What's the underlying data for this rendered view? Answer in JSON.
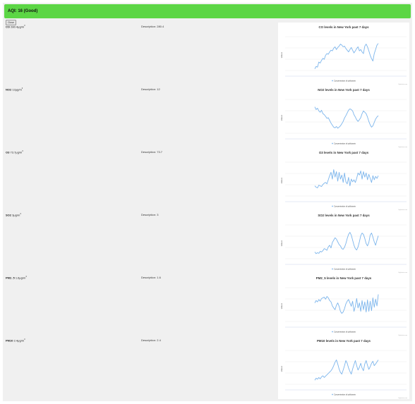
{
  "header": {
    "title": "AQI: 16 (Good)",
    "color": "#5cd645",
    "close_label": "Close"
  },
  "rows": [
    {
      "name": "CO",
      "value": "280.4",
      "unit": "μg/m",
      "unit_exp": "3",
      "description": "Description: 280.4",
      "chart_title": "CO levels in New York past 7 days"
    },
    {
      "name": "NO2",
      "value": "12",
      "unit": "μg/m",
      "unit_exp": "3",
      "description": "Description: 12",
      "chart_title": "NO2 levels in New York past 7 days"
    },
    {
      "name": "O3",
      "value": "73.7",
      "unit": "μg/m",
      "unit_exp": "3",
      "description": "Description: 73.7",
      "chart_title": "O3 levels in New York past 7 days"
    },
    {
      "name": "SO2",
      "value": "3",
      "unit": "μg/m",
      "unit_exp": "3",
      "description": "Description: 3",
      "chart_title": "SO2 levels in New York past 7 days"
    },
    {
      "name": "PM2_5",
      "value": "1.6",
      "unit": "μg/m",
      "unit_exp": "3",
      "description": "Description: 1.6",
      "chart_title": "PM2_5 levels in New York past 7 days"
    },
    {
      "name": "PM10",
      "value": "2.4",
      "unit": "μg/m",
      "unit_exp": "3",
      "description": "Description: 2.4",
      "chart_title": "PM10 levels in New York past 7 days"
    }
  ],
  "chart_common": {
    "ylabel": "Values",
    "legend": "Concentration of pollutants",
    "credits": "Highcharts.com",
    "line_color": "#7cb5ec",
    "axis_color": "#ccd6eb"
  },
  "chart_data": [
    {
      "type": "line",
      "title": "CO levels in New York past 7 days",
      "ylabel": "Values",
      "series": [
        {
          "name": "Concentration of pollutants",
          "values": [
            0.05,
            0.12,
            0.1,
            0.25,
            0.22,
            0.3,
            0.36,
            0.33,
            0.45,
            0.5,
            0.48,
            0.55,
            0.6,
            0.58,
            0.66,
            0.7,
            0.62,
            0.68,
            0.72,
            0.78,
            0.75,
            0.7,
            0.72,
            0.65,
            0.6,
            0.55,
            0.62,
            0.68,
            0.6,
            0.52,
            0.58,
            0.65,
            0.7,
            0.58,
            0.62,
            0.55,
            0.5,
            0.72,
            0.78,
            0.7,
            0.58,
            0.45,
            0.35,
            0.28,
            0.5,
            0.62,
            0.75,
            0.8
          ]
        }
      ]
    },
    {
      "type": "line",
      "title": "NO2 levels in New York past 7 days",
      "ylabel": "Values",
      "series": [
        {
          "name": "Concentration of pollutants",
          "values": [
            0.78,
            0.7,
            0.74,
            0.66,
            0.62,
            0.68,
            0.58,
            0.55,
            0.5,
            0.44,
            0.46,
            0.38,
            0.3,
            0.24,
            0.18,
            0.16,
            0.2,
            0.15,
            0.18,
            0.22,
            0.28,
            0.35,
            0.45,
            0.52,
            0.6,
            0.68,
            0.72,
            0.7,
            0.66,
            0.55,
            0.48,
            0.4,
            0.35,
            0.4,
            0.46,
            0.58,
            0.66,
            0.62,
            0.58,
            0.48,
            0.35,
            0.25,
            0.18,
            0.22,
            0.32,
            0.42,
            0.48,
            0.52
          ]
        }
      ]
    },
    {
      "type": "line",
      "title": "O3 levels in New York past 7 days",
      "ylabel": "Values",
      "series": [
        {
          "name": "Concentration of pollutants",
          "values": [
            0.3,
            0.26,
            0.24,
            0.32,
            0.3,
            0.28,
            0.34,
            0.38,
            0.4,
            0.36,
            0.48,
            0.6,
            0.7,
            0.5,
            0.78,
            0.56,
            0.72,
            0.44,
            0.7,
            0.5,
            0.62,
            0.4,
            0.68,
            0.42,
            0.36,
            0.55,
            0.3,
            0.5,
            0.42,
            0.48,
            0.4,
            0.52,
            0.68,
            0.62,
            0.74,
            0.5,
            0.72,
            0.56,
            0.68,
            0.48,
            0.64,
            0.52,
            0.4,
            0.6,
            0.48,
            0.58,
            0.52,
            0.6
          ]
        }
      ]
    },
    {
      "type": "line",
      "title": "SO2 levels in New York past 7 days",
      "ylabel": "Values",
      "series": [
        {
          "name": "Concentration of pollutants",
          "values": [
            0.2,
            0.15,
            0.18,
            0.16,
            0.22,
            0.2,
            0.24,
            0.3,
            0.28,
            0.25,
            0.35,
            0.4,
            0.32,
            0.48,
            0.55,
            0.62,
            0.58,
            0.5,
            0.42,
            0.38,
            0.3,
            0.28,
            0.34,
            0.45,
            0.6,
            0.72,
            0.78,
            0.7,
            0.55,
            0.4,
            0.3,
            0.26,
            0.35,
            0.5,
            0.68,
            0.76,
            0.72,
            0.6,
            0.45,
            0.38,
            0.48,
            0.7,
            0.76,
            0.64,
            0.5,
            0.4,
            0.55,
            0.68
          ]
        }
      ]
    },
    {
      "type": "line",
      "title": "PM2_5 levels in New York past 7 days",
      "ylabel": "Values",
      "series": [
        {
          "name": "Concentration of pollutants",
          "values": [
            0.55,
            0.62,
            0.58,
            0.65,
            0.6,
            0.68,
            0.7,
            0.72,
            0.66,
            0.74,
            0.7,
            0.62,
            0.58,
            0.46,
            0.4,
            0.35,
            0.48,
            0.55,
            0.45,
            0.3,
            0.24,
            0.28,
            0.38,
            0.52,
            0.6,
            0.65,
            0.55,
            0.45,
            0.6,
            0.3,
            0.45,
            0.68,
            0.4,
            0.55,
            0.3,
            0.62,
            0.35,
            0.58,
            0.28,
            0.64,
            0.3,
            0.6,
            0.32,
            0.7,
            0.42,
            0.66,
            0.46,
            0.8
          ]
        }
      ]
    },
    {
      "type": "line",
      "title": "PM10 levels in New York past 7 days",
      "ylabel": "Values",
      "series": [
        {
          "name": "Concentration of pollutants",
          "values": [
            0.12,
            0.18,
            0.15,
            0.2,
            0.16,
            0.22,
            0.25,
            0.2,
            0.24,
            0.28,
            0.32,
            0.36,
            0.4,
            0.46,
            0.55,
            0.65,
            0.72,
            0.6,
            0.45,
            0.35,
            0.3,
            0.42,
            0.55,
            0.7,
            0.62,
            0.48,
            0.38,
            0.3,
            0.45,
            0.58,
            0.7,
            0.55,
            0.42,
            0.5,
            0.62,
            0.48,
            0.4,
            0.6,
            0.7,
            0.56,
            0.44,
            0.52,
            0.62,
            0.68,
            0.55,
            0.6,
            0.66,
            0.72
          ]
        }
      ]
    }
  ]
}
